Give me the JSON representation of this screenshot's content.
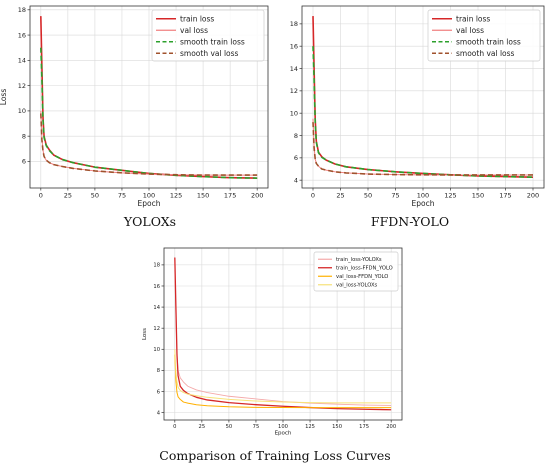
{
  "captions": {
    "left": "YOLOXs",
    "right": "FFDN-YOLO",
    "bottom": "Comparison of Training Loss Curves"
  },
  "chart_data": [
    {
      "type": "line",
      "xlabel": "Epoch",
      "ylabel": "Loss",
      "xlim": [
        -10,
        210
      ],
      "ylim": [
        3.9,
        18.3
      ],
      "xticks": [
        0,
        25,
        50,
        75,
        100,
        125,
        150,
        175,
        200
      ],
      "yticks": [
        6,
        8,
        10,
        12,
        14,
        16,
        18
      ],
      "grid": true,
      "legend_position": "upper-right",
      "series": [
        {
          "name": "train loss",
          "color": "#d62728",
          "style": "solid",
          "width": 1.6,
          "x": [
            0,
            1,
            2,
            3,
            5,
            8,
            12,
            20,
            30,
            50,
            75,
            100,
            125,
            150,
            175,
            200
          ],
          "y": [
            17.5,
            13.5,
            9.5,
            8.0,
            7.3,
            6.9,
            6.5,
            6.15,
            5.9,
            5.55,
            5.3,
            5.05,
            4.9,
            4.8,
            4.72,
            4.68
          ]
        },
        {
          "name": "val loss",
          "color": "#f08080",
          "style": "solid",
          "width": 1.0,
          "x": [
            0,
            1,
            2,
            3,
            5,
            8,
            12,
            20,
            30,
            50,
            75,
            100,
            125,
            150,
            175,
            200
          ],
          "y": [
            10.0,
            7.8,
            6.9,
            6.4,
            6.1,
            5.9,
            5.75,
            5.6,
            5.45,
            5.25,
            5.1,
            5.0,
            4.95,
            4.92,
            4.92,
            4.92
          ]
        },
        {
          "name": "smooth train loss",
          "color": "#2ca02c",
          "style": "dashed",
          "width": 1.6,
          "x": [
            0,
            1,
            2,
            3,
            5,
            8,
            12,
            20,
            30,
            50,
            75,
            100,
            125,
            150,
            175,
            200
          ],
          "y": [
            15.0,
            12.5,
            9.3,
            7.9,
            7.25,
            6.85,
            6.5,
            6.15,
            5.9,
            5.55,
            5.3,
            5.05,
            4.9,
            4.8,
            4.72,
            4.68
          ]
        },
        {
          "name": "smooth val loss",
          "color": "#a0522d",
          "style": "dashed",
          "width": 1.6,
          "x": [
            0,
            1,
            2,
            3,
            5,
            8,
            12,
            20,
            30,
            50,
            75,
            100,
            125,
            150,
            175,
            200
          ],
          "y": [
            9.8,
            7.7,
            6.85,
            6.4,
            6.1,
            5.9,
            5.75,
            5.6,
            5.45,
            5.25,
            5.1,
            5.0,
            4.95,
            4.92,
            4.92,
            4.92
          ]
        }
      ]
    },
    {
      "type": "line",
      "xlabel": "Epoch",
      "ylabel": "",
      "xlim": [
        -10,
        210
      ],
      "ylim": [
        3.3,
        19.6
      ],
      "xticks": [
        0,
        25,
        50,
        75,
        100,
        125,
        150,
        175,
        200
      ],
      "yticks": [
        4,
        6,
        8,
        10,
        12,
        14,
        16,
        18
      ],
      "grid": true,
      "legend_position": "upper-right",
      "series": [
        {
          "name": "train loss",
          "color": "#d62728",
          "style": "solid",
          "width": 1.6,
          "x": [
            0,
            1,
            2,
            3,
            5,
            8,
            12,
            20,
            30,
            50,
            75,
            100,
            125,
            150,
            175,
            200
          ],
          "y": [
            18.7,
            14.0,
            9.5,
            7.5,
            6.5,
            6.1,
            5.8,
            5.45,
            5.2,
            4.95,
            4.75,
            4.6,
            4.48,
            4.38,
            4.32,
            4.27
          ]
        },
        {
          "name": "val loss",
          "color": "#f08080",
          "style": "solid",
          "width": 1.0,
          "x": [
            0,
            1,
            2,
            3,
            5,
            8,
            12,
            20,
            30,
            50,
            75,
            100,
            125,
            150,
            175,
            200
          ],
          "y": [
            9.5,
            7.0,
            5.9,
            5.5,
            5.25,
            5.0,
            4.9,
            4.75,
            4.65,
            4.55,
            4.5,
            4.48,
            4.47,
            4.47,
            4.47,
            4.47
          ]
        },
        {
          "name": "smooth train loss",
          "color": "#2ca02c",
          "style": "dashed",
          "width": 1.6,
          "x": [
            0,
            1,
            2,
            3,
            5,
            8,
            12,
            20,
            30,
            50,
            75,
            100,
            125,
            150,
            175,
            200
          ],
          "y": [
            16.0,
            13.0,
            9.2,
            7.4,
            6.45,
            6.05,
            5.8,
            5.45,
            5.2,
            4.95,
            4.75,
            4.6,
            4.48,
            4.38,
            4.32,
            4.27
          ]
        },
        {
          "name": "smooth val loss",
          "color": "#a0522d",
          "style": "dashed",
          "width": 1.6,
          "x": [
            0,
            1,
            2,
            3,
            5,
            8,
            12,
            20,
            30,
            50,
            75,
            100,
            125,
            150,
            175,
            200
          ],
          "y": [
            9.2,
            6.9,
            5.9,
            5.5,
            5.25,
            5.0,
            4.9,
            4.75,
            4.65,
            4.55,
            4.5,
            4.48,
            4.47,
            4.47,
            4.47,
            4.47
          ]
        }
      ]
    },
    {
      "type": "line",
      "xlabel": "Epoch",
      "ylabel": "Loss",
      "xlim": [
        -10,
        210
      ],
      "ylim": [
        3.3,
        19.6
      ],
      "xticks": [
        0,
        25,
        50,
        75,
        100,
        125,
        150,
        175,
        200
      ],
      "yticks": [
        4,
        6,
        8,
        10,
        12,
        14,
        16,
        18
      ],
      "grid": true,
      "legend_position": "upper-right",
      "series": [
        {
          "name": "train_loss-YOLOXs",
          "color": "#f4a9a9",
          "style": "solid",
          "width": 0.9,
          "x": [
            0,
            1,
            2,
            3,
            5,
            8,
            12,
            20,
            30,
            50,
            75,
            100,
            125,
            150,
            175,
            200
          ],
          "y": [
            17.5,
            13.5,
            9.5,
            8.0,
            7.3,
            6.9,
            6.5,
            6.15,
            5.9,
            5.55,
            5.3,
            5.05,
            4.9,
            4.8,
            4.72,
            4.68
          ]
        },
        {
          "name": "train_loss-FFDN_YOLO",
          "color": "#d62728",
          "style": "solid",
          "width": 1.3,
          "x": [
            0,
            1,
            2,
            3,
            5,
            8,
            12,
            20,
            30,
            50,
            75,
            100,
            125,
            150,
            175,
            200
          ],
          "y": [
            18.7,
            14.0,
            9.5,
            7.5,
            6.5,
            6.1,
            5.8,
            5.45,
            5.2,
            4.95,
            4.75,
            4.6,
            4.48,
            4.38,
            4.32,
            4.27
          ]
        },
        {
          "name": "val_loss-FFDN_YOLO",
          "color": "#ffb000",
          "style": "solid",
          "width": 1.0,
          "x": [
            0,
            1,
            2,
            3,
            5,
            8,
            12,
            20,
            30,
            50,
            75,
            100,
            125,
            150,
            175,
            200
          ],
          "y": [
            9.5,
            7.0,
            5.9,
            5.5,
            5.25,
            5.0,
            4.9,
            4.75,
            4.65,
            4.55,
            4.5,
            4.48,
            4.47,
            4.47,
            4.47,
            4.47
          ]
        },
        {
          "name": "val_loss-YOLOXs",
          "color": "#f7e27a",
          "style": "solid",
          "width": 1.0,
          "x": [
            0,
            1,
            2,
            3,
            5,
            8,
            12,
            20,
            30,
            50,
            75,
            100,
            125,
            150,
            175,
            200
          ],
          "y": [
            10.0,
            7.8,
            6.9,
            6.4,
            6.1,
            5.9,
            5.75,
            5.6,
            5.45,
            5.25,
            5.1,
            5.0,
            4.95,
            4.92,
            4.92,
            4.92
          ]
        }
      ]
    }
  ]
}
